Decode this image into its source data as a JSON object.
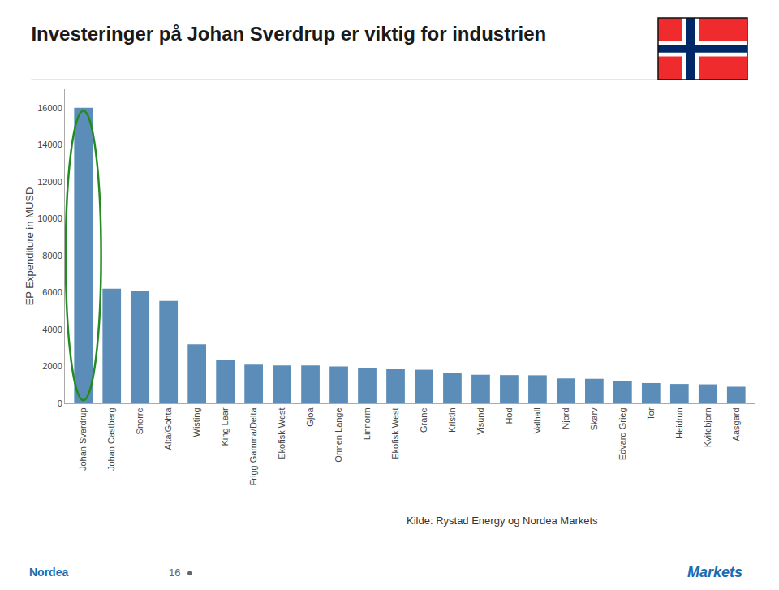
{
  "chart_data": {
    "type": "bar",
    "title": "Investeringer på Johan Sverdrup er viktig for industrien",
    "ylabel": "EP Expenditure in MUSD",
    "categories": [
      "Johan Sverdrup",
      "Johan Castberg",
      "Snorre",
      "Alta/Gohta",
      "Wisting",
      "King Lear",
      "Frigg Gamma/Delta",
      "Ekofisk West",
      "Gjoa",
      "Ormen Lange",
      "Linnorm",
      "Ekofisk West",
      "Grane",
      "Kristin",
      "Visund",
      "Hod",
      "Valhall",
      "Njord",
      "Skarv",
      "Edvard Grieg",
      "Tor",
      "Heidrun",
      "Kvitebjorn",
      "Aasgard"
    ],
    "values": [
      16000,
      6200,
      6100,
      5550,
      3200,
      2350,
      2100,
      2050,
      2050,
      2000,
      1900,
      1850,
      1820,
      1650,
      1550,
      1530,
      1520,
      1350,
      1330,
      1200,
      1100,
      1050,
      1030,
      900
    ],
    "color": "#5B8DB8",
    "ylim": [
      0,
      17000
    ],
    "yticks": [
      0,
      2000,
      4000,
      6000,
      8000,
      10000,
      12000,
      14000,
      16000
    ],
    "grid": false,
    "annotations": [
      "Kilde: Rystad Energy og Nordea Markets",
      "16  ●",
      "Markets",
      "Nordea"
    ]
  }
}
